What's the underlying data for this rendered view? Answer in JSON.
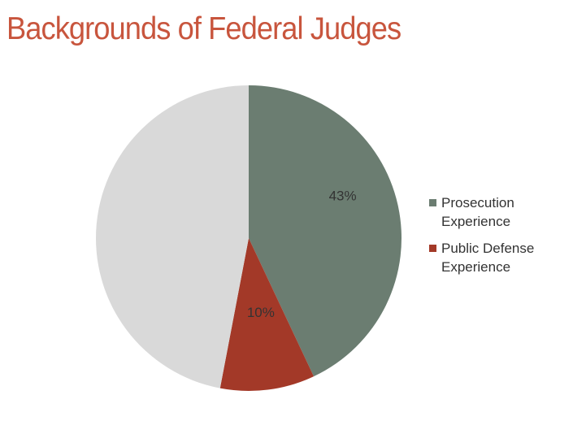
{
  "chart_data": {
    "type": "pie",
    "title": "Backgrounds of Federal Judges",
    "categories": [
      "Prosecution Experience",
      "Public Defense Experience",
      null
    ],
    "values": [
      43,
      10,
      47
    ],
    "value_labels": [
      "43%",
      "10%",
      null
    ],
    "colors": [
      "#6b7d71",
      "#a33928",
      "#d9d9d9"
    ],
    "legend": "right"
  }
}
